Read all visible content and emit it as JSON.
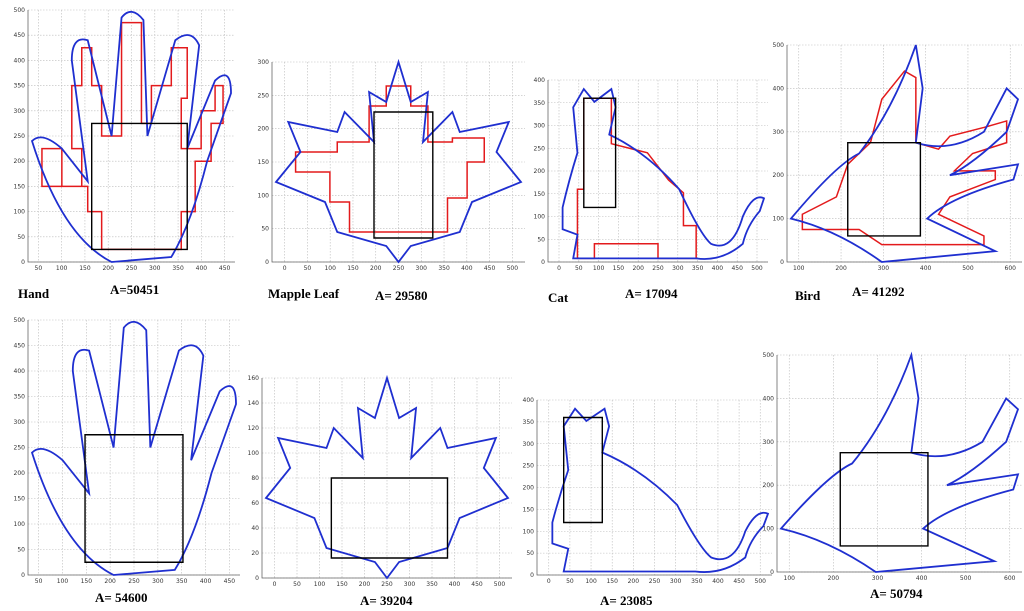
{
  "panels": [
    {
      "name": "Hand",
      "area": "A=50451",
      "xticks": [
        50,
        100,
        150,
        200,
        250,
        300,
        350,
        400,
        450
      ],
      "yticks": [
        0,
        50,
        100,
        150,
        200,
        250,
        300,
        350,
        400,
        450,
        500
      ]
    },
    {
      "name": "Mapple Leaf",
      "area": "A= 29580",
      "xticks": [
        0,
        50,
        100,
        150,
        200,
        250,
        300,
        350,
        400,
        450,
        500
      ],
      "yticks": [
        0,
        50,
        100,
        150,
        200,
        250,
        300
      ]
    },
    {
      "name": "Cat",
      "area": "A= 17094",
      "xticks": [
        0,
        50,
        100,
        150,
        200,
        250,
        300,
        350,
        400,
        450,
        500
      ],
      "yticks": [
        0,
        50,
        100,
        150,
        200,
        250,
        300,
        350,
        400
      ]
    },
    {
      "name": "Bird",
      "area": "A= 41292",
      "xticks": [
        100,
        200,
        300,
        400,
        500,
        600
      ],
      "yticks": [
        0,
        100,
        200,
        300,
        400,
        500
      ]
    },
    {
      "area": "A= 54600",
      "xticks": [
        50,
        100,
        150,
        200,
        250,
        300,
        350,
        400,
        450
      ],
      "yticks": [
        0,
        50,
        100,
        150,
        200,
        250,
        300,
        350,
        400,
        450,
        500
      ]
    },
    {
      "area": "A= 39204",
      "xticks": [
        0,
        50,
        100,
        150,
        200,
        250,
        300,
        350,
        400,
        450,
        500
      ],
      "yticks": [
        0,
        20,
        40,
        60,
        80,
        100,
        120,
        140,
        160
      ]
    },
    {
      "area": "A= 23085",
      "xticks": [
        0,
        50,
        100,
        150,
        200,
        250,
        300,
        350,
        400,
        450,
        500
      ],
      "yticks": [
        0,
        50,
        100,
        150,
        200,
        250,
        300,
        350,
        400
      ]
    },
    {
      "area": "A= 50794",
      "xticks": [
        100,
        200,
        300,
        400,
        500,
        600
      ],
      "yticks": [
        0,
        100,
        200,
        300,
        400,
        500
      ]
    }
  ]
}
